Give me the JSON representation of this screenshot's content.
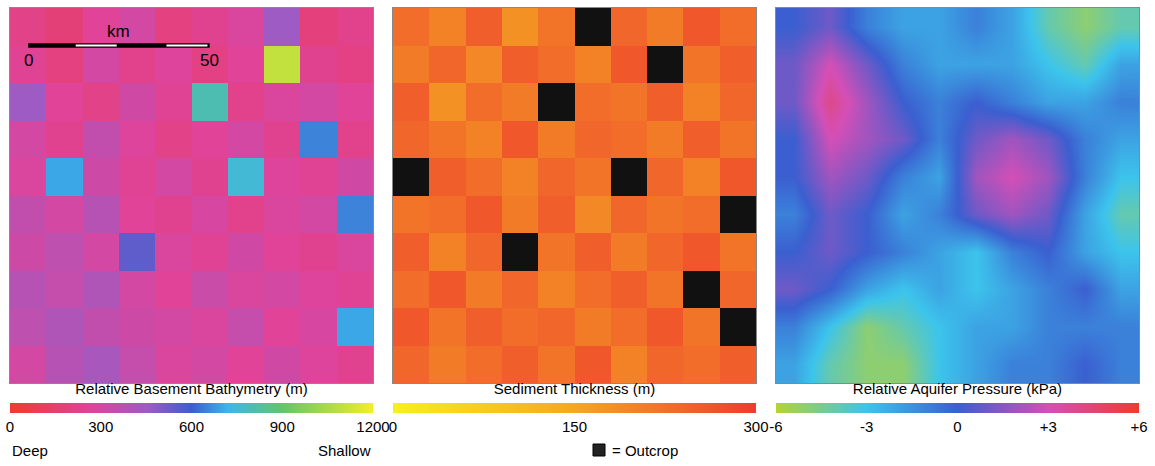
{
  "chart_data": [
    {
      "type": "heatmap",
      "colorbar": {
        "title": "Relative Basement Bathymetry (m)",
        "range": [
          0,
          1200
        ],
        "ticks": [
          0,
          300,
          600,
          900,
          1200
        ],
        "end_labels": [
          "Deep",
          "Shallow"
        ]
      },
      "x": [
        5,
        15,
        25,
        35,
        45,
        55,
        65,
        75,
        85,
        95
      ],
      "y": [
        5,
        15,
        25,
        35,
        45,
        55,
        65,
        75,
        85,
        95
      ],
      "z": [
        [
          300,
          380,
          420,
          340,
          280,
          300,
          260,
          310,
          270,
          240
        ],
        [
          360,
          400,
          350,
          320,
          300,
          280,
          340,
          260,
          290,
          700
        ],
        [
          380,
          340,
          400,
          300,
          260,
          330,
          280,
          300,
          270,
          250
        ],
        [
          320,
          360,
          300,
          550,
          280,
          250,
          310,
          260,
          240,
          280
        ],
        [
          350,
          300,
          380,
          260,
          240,
          290,
          230,
          280,
          300,
          650
        ],
        [
          280,
          700,
          320,
          250,
          300,
          240,
          750,
          270,
          250,
          310
        ],
        [
          300,
          240,
          350,
          270,
          220,
          260,
          300,
          240,
          650,
          230
        ],
        [
          450,
          260,
          220,
          310,
          250,
          800,
          230,
          280,
          300,
          260
        ],
        [
          250,
          200,
          300,
          230,
          270,
          210,
          260,
          1100,
          240,
          210
        ],
        [
          220,
          180,
          260,
          300,
          200,
          240,
          280,
          450,
          190,
          230
        ]
      ],
      "xlim": [
        0,
        100
      ],
      "ylim": [
        0,
        100
      ],
      "tick_labels": false,
      "scale_bar": {
        "label": "km",
        "ticks": [
          0,
          50
        ]
      }
    },
    {
      "type": "heatmap",
      "colorbar": {
        "title": "Sediment Thickness (m)",
        "range": [
          0,
          300
        ],
        "ticks": [
          0,
          150,
          300
        ]
      },
      "outcrop_label": "= Outcrop",
      "x": [
        5,
        15,
        25,
        35,
        45,
        55,
        65,
        75,
        85,
        95
      ],
      "y": [
        5,
        15,
        25,
        35,
        45,
        55,
        65,
        75,
        85,
        95
      ],
      "z": [
        [
          240,
          210,
          230,
          250,
          220,
          260,
          200,
          240,
          230,
          250
        ],
        [
          260,
          220,
          250,
          230,
          240,
          210,
          230,
          260,
          220,
          null
        ],
        [
          230,
          260,
          210,
          240,
          200,
          230,
          250,
          220,
          null,
          240
        ],
        [
          250,
          200,
          240,
          null,
          220,
          250,
          210,
          240,
          260,
          220
        ],
        [
          220,
          230,
          260,
          210,
          250,
          190,
          240,
          220,
          230,
          null
        ],
        [
          null,
          250,
          230,
          200,
          240,
          220,
          null,
          240,
          200,
          260
        ],
        [
          240,
          220,
          200,
          260,
          210,
          240,
          230,
          210,
          250,
          220
        ],
        [
          250,
          180,
          230,
          210,
          null,
          230,
          220,
          250,
          200,
          240
        ],
        [
          210,
          240,
          190,
          250,
          230,
          200,
          260,
          null,
          220,
          250
        ],
        [
          230,
          200,
          250,
          180,
          220,
          null,
          240,
          210,
          260,
          230
        ]
      ],
      "xlim": [
        0,
        100
      ],
      "ylim": [
        0,
        100
      ],
      "tick_labels": false
    },
    {
      "type": "heatmap",
      "colorbar": {
        "title": "Relative Aquifer Pressure (kPa)",
        "range": [
          -6,
          6
        ],
        "ticks": [
          -6,
          -3,
          0,
          {
            "value": 3,
            "label": "+3"
          },
          {
            "value": 6,
            "label": "+6"
          }
        ]
      },
      "x": [
        5,
        15,
        25,
        35,
        45,
        55,
        65,
        75,
        85,
        95
      ],
      "y": [
        5,
        15,
        25,
        35,
        45,
        55,
        65,
        75,
        85,
        95
      ],
      "z": [
        [
          -2,
          -4,
          -5,
          -5,
          -3,
          -2,
          -1,
          -1,
          0,
          -1
        ],
        [
          -1,
          -3,
          -5,
          -4,
          -3,
          -2,
          -2,
          -1,
          -1,
          -1
        ],
        [
          1,
          0,
          -2,
          -3,
          -2,
          -3,
          -2,
          -1,
          0,
          -2
        ],
        [
          0,
          1,
          0,
          -1,
          -2,
          -3,
          -1,
          0,
          -2,
          -3
        ],
        [
          -1,
          1,
          0,
          -2,
          -1,
          1,
          2,
          1,
          -2,
          -4
        ],
        [
          0,
          2,
          1,
          -1,
          -2,
          2,
          3,
          2,
          -1,
          -3
        ],
        [
          0,
          3,
          2,
          1,
          -1,
          1,
          2,
          1,
          -1,
          -2
        ],
        [
          1,
          4,
          2,
          0,
          -1,
          0,
          -1,
          -2,
          -2,
          -1
        ],
        [
          1,
          3,
          1,
          -1,
          -2,
          -2,
          -2,
          -3,
          -4,
          -2
        ],
        [
          0,
          1,
          -1,
          -2,
          -2,
          -1,
          -2,
          -4,
          -5,
          -4
        ]
      ],
      "xlim": [
        0,
        100
      ],
      "ylim": [
        0,
        100
      ],
      "tick_labels": false
    }
  ]
}
